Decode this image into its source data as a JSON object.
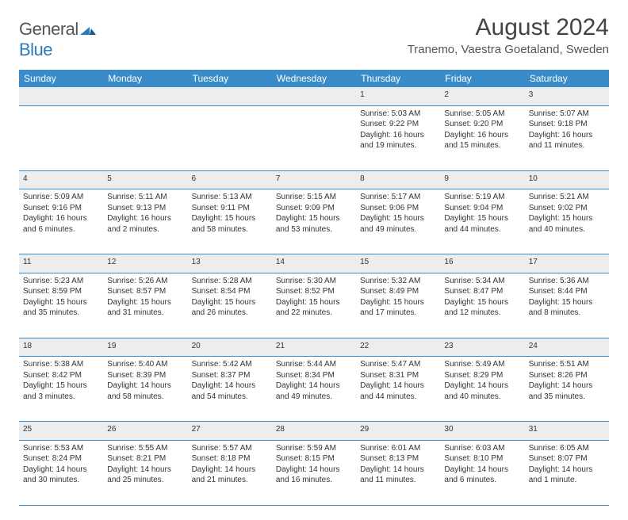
{
  "logo": {
    "text1": "General",
    "text2": "Blue"
  },
  "title": "August 2024",
  "location": "Tranemo, Vaestra Goetaland, Sweden",
  "colors": {
    "header_bg": "#3a8cc9",
    "header_text": "#ffffff",
    "daynum_bg": "#ededed",
    "border": "#3a8cc9",
    "logo_gray": "#555555",
    "logo_blue": "#2b7bbf"
  },
  "daysOfWeek": [
    "Sunday",
    "Monday",
    "Tuesday",
    "Wednesday",
    "Thursday",
    "Friday",
    "Saturday"
  ],
  "weeks": [
    [
      null,
      null,
      null,
      null,
      {
        "n": "1",
        "sr": "Sunrise: 5:03 AM",
        "ss": "Sunset: 9:22 PM",
        "d1": "Daylight: 16 hours",
        "d2": "and 19 minutes."
      },
      {
        "n": "2",
        "sr": "Sunrise: 5:05 AM",
        "ss": "Sunset: 9:20 PM",
        "d1": "Daylight: 16 hours",
        "d2": "and 15 minutes."
      },
      {
        "n": "3",
        "sr": "Sunrise: 5:07 AM",
        "ss": "Sunset: 9:18 PM",
        "d1": "Daylight: 16 hours",
        "d2": "and 11 minutes."
      }
    ],
    [
      {
        "n": "4",
        "sr": "Sunrise: 5:09 AM",
        "ss": "Sunset: 9:16 PM",
        "d1": "Daylight: 16 hours",
        "d2": "and 6 minutes."
      },
      {
        "n": "5",
        "sr": "Sunrise: 5:11 AM",
        "ss": "Sunset: 9:13 PM",
        "d1": "Daylight: 16 hours",
        "d2": "and 2 minutes."
      },
      {
        "n": "6",
        "sr": "Sunrise: 5:13 AM",
        "ss": "Sunset: 9:11 PM",
        "d1": "Daylight: 15 hours",
        "d2": "and 58 minutes."
      },
      {
        "n": "7",
        "sr": "Sunrise: 5:15 AM",
        "ss": "Sunset: 9:09 PM",
        "d1": "Daylight: 15 hours",
        "d2": "and 53 minutes."
      },
      {
        "n": "8",
        "sr": "Sunrise: 5:17 AM",
        "ss": "Sunset: 9:06 PM",
        "d1": "Daylight: 15 hours",
        "d2": "and 49 minutes."
      },
      {
        "n": "9",
        "sr": "Sunrise: 5:19 AM",
        "ss": "Sunset: 9:04 PM",
        "d1": "Daylight: 15 hours",
        "d2": "and 44 minutes."
      },
      {
        "n": "10",
        "sr": "Sunrise: 5:21 AM",
        "ss": "Sunset: 9:02 PM",
        "d1": "Daylight: 15 hours",
        "d2": "and 40 minutes."
      }
    ],
    [
      {
        "n": "11",
        "sr": "Sunrise: 5:23 AM",
        "ss": "Sunset: 8:59 PM",
        "d1": "Daylight: 15 hours",
        "d2": "and 35 minutes."
      },
      {
        "n": "12",
        "sr": "Sunrise: 5:26 AM",
        "ss": "Sunset: 8:57 PM",
        "d1": "Daylight: 15 hours",
        "d2": "and 31 minutes."
      },
      {
        "n": "13",
        "sr": "Sunrise: 5:28 AM",
        "ss": "Sunset: 8:54 PM",
        "d1": "Daylight: 15 hours",
        "d2": "and 26 minutes."
      },
      {
        "n": "14",
        "sr": "Sunrise: 5:30 AM",
        "ss": "Sunset: 8:52 PM",
        "d1": "Daylight: 15 hours",
        "d2": "and 22 minutes."
      },
      {
        "n": "15",
        "sr": "Sunrise: 5:32 AM",
        "ss": "Sunset: 8:49 PM",
        "d1": "Daylight: 15 hours",
        "d2": "and 17 minutes."
      },
      {
        "n": "16",
        "sr": "Sunrise: 5:34 AM",
        "ss": "Sunset: 8:47 PM",
        "d1": "Daylight: 15 hours",
        "d2": "and 12 minutes."
      },
      {
        "n": "17",
        "sr": "Sunrise: 5:36 AM",
        "ss": "Sunset: 8:44 PM",
        "d1": "Daylight: 15 hours",
        "d2": "and 8 minutes."
      }
    ],
    [
      {
        "n": "18",
        "sr": "Sunrise: 5:38 AM",
        "ss": "Sunset: 8:42 PM",
        "d1": "Daylight: 15 hours",
        "d2": "and 3 minutes."
      },
      {
        "n": "19",
        "sr": "Sunrise: 5:40 AM",
        "ss": "Sunset: 8:39 PM",
        "d1": "Daylight: 14 hours",
        "d2": "and 58 minutes."
      },
      {
        "n": "20",
        "sr": "Sunrise: 5:42 AM",
        "ss": "Sunset: 8:37 PM",
        "d1": "Daylight: 14 hours",
        "d2": "and 54 minutes."
      },
      {
        "n": "21",
        "sr": "Sunrise: 5:44 AM",
        "ss": "Sunset: 8:34 PM",
        "d1": "Daylight: 14 hours",
        "d2": "and 49 minutes."
      },
      {
        "n": "22",
        "sr": "Sunrise: 5:47 AM",
        "ss": "Sunset: 8:31 PM",
        "d1": "Daylight: 14 hours",
        "d2": "and 44 minutes."
      },
      {
        "n": "23",
        "sr": "Sunrise: 5:49 AM",
        "ss": "Sunset: 8:29 PM",
        "d1": "Daylight: 14 hours",
        "d2": "and 40 minutes."
      },
      {
        "n": "24",
        "sr": "Sunrise: 5:51 AM",
        "ss": "Sunset: 8:26 PM",
        "d1": "Daylight: 14 hours",
        "d2": "and 35 minutes."
      }
    ],
    [
      {
        "n": "25",
        "sr": "Sunrise: 5:53 AM",
        "ss": "Sunset: 8:24 PM",
        "d1": "Daylight: 14 hours",
        "d2": "and 30 minutes."
      },
      {
        "n": "26",
        "sr": "Sunrise: 5:55 AM",
        "ss": "Sunset: 8:21 PM",
        "d1": "Daylight: 14 hours",
        "d2": "and 25 minutes."
      },
      {
        "n": "27",
        "sr": "Sunrise: 5:57 AM",
        "ss": "Sunset: 8:18 PM",
        "d1": "Daylight: 14 hours",
        "d2": "and 21 minutes."
      },
      {
        "n": "28",
        "sr": "Sunrise: 5:59 AM",
        "ss": "Sunset: 8:15 PM",
        "d1": "Daylight: 14 hours",
        "d2": "and 16 minutes."
      },
      {
        "n": "29",
        "sr": "Sunrise: 6:01 AM",
        "ss": "Sunset: 8:13 PM",
        "d1": "Daylight: 14 hours",
        "d2": "and 11 minutes."
      },
      {
        "n": "30",
        "sr": "Sunrise: 6:03 AM",
        "ss": "Sunset: 8:10 PM",
        "d1": "Daylight: 14 hours",
        "d2": "and 6 minutes."
      },
      {
        "n": "31",
        "sr": "Sunrise: 6:05 AM",
        "ss": "Sunset: 8:07 PM",
        "d1": "Daylight: 14 hours",
        "d2": "and 1 minute."
      }
    ]
  ]
}
